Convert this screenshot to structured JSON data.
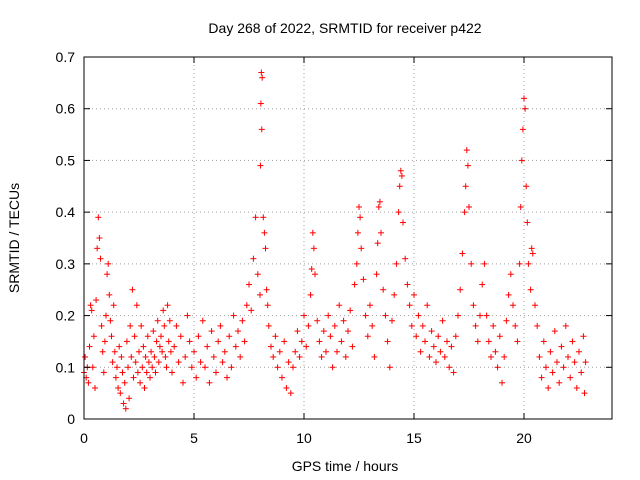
{
  "chart_data": {
    "type": "scatter",
    "title": "Day 268 of 2022, SRMTID for receiver p422",
    "xlabel": "GPS time / hours",
    "ylabel": "SRMTID / TECUs",
    "xlim": [
      0,
      24
    ],
    "ylim": [
      0,
      0.7
    ],
    "x_ticks": [
      "0",
      "5",
      "10",
      "15",
      "20"
    ],
    "y_ticks": [
      "0",
      "0.1",
      "0.2",
      "0.3",
      "0.4",
      "0.5",
      "0.6",
      "0.7"
    ],
    "grid": true,
    "marker": "plus",
    "color": "#ff0000",
    "series": [
      {
        "name": "SRMTID",
        "points": [
          [
            0.0,
            0.09
          ],
          [
            0.05,
            0.12
          ],
          [
            0.1,
            0.08
          ],
          [
            0.15,
            0.1
          ],
          [
            0.2,
            0.07
          ],
          [
            0.25,
            0.14
          ],
          [
            0.3,
            0.22
          ],
          [
            0.35,
            0.21
          ],
          [
            0.4,
            0.1
          ],
          [
            0.45,
            0.16
          ],
          [
            0.5,
            0.06
          ],
          [
            0.55,
            0.23
          ],
          [
            0.6,
            0.33
          ],
          [
            0.65,
            0.39
          ],
          [
            0.7,
            0.35
          ],
          [
            0.75,
            0.31
          ],
          [
            0.8,
            0.18
          ],
          [
            0.85,
            0.13
          ],
          [
            0.9,
            0.09
          ],
          [
            0.95,
            0.15
          ],
          [
            1.0,
            0.2
          ],
          [
            1.05,
            0.28
          ],
          [
            1.1,
            0.3
          ],
          [
            1.15,
            0.24
          ],
          [
            1.2,
            0.19
          ],
          [
            1.25,
            0.16
          ],
          [
            1.3,
            0.11
          ],
          [
            1.35,
            0.22
          ],
          [
            1.4,
            0.13
          ],
          [
            1.45,
            0.08
          ],
          [
            1.5,
            0.1
          ],
          [
            1.55,
            0.06
          ],
          [
            1.6,
            0.14
          ],
          [
            1.65,
            0.05
          ],
          [
            1.7,
            0.12
          ],
          [
            1.75,
            0.09
          ],
          [
            1.8,
            0.03
          ],
          [
            1.85,
            0.07
          ],
          [
            1.9,
            0.02
          ],
          [
            1.95,
            0.15
          ],
          [
            2.0,
            0.1
          ],
          [
            2.05,
            0.04
          ],
          [
            2.1,
            0.18
          ],
          [
            2.15,
            0.12
          ],
          [
            2.2,
            0.25
          ],
          [
            2.25,
            0.08
          ],
          [
            2.3,
            0.16
          ],
          [
            2.35,
            0.11
          ],
          [
            2.4,
            0.22
          ],
          [
            2.45,
            0.09
          ],
          [
            2.5,
            0.13
          ],
          [
            2.55,
            0.07
          ],
          [
            2.6,
            0.18
          ],
          [
            2.65,
            0.1
          ],
          [
            2.7,
            0.14
          ],
          [
            2.75,
            0.06
          ],
          [
            2.8,
            0.12
          ],
          [
            2.85,
            0.09
          ],
          [
            2.9,
            0.16
          ],
          [
            2.95,
            0.11
          ],
          [
            3.0,
            0.08
          ],
          [
            3.05,
            0.13
          ],
          [
            3.1,
            0.1
          ],
          [
            3.15,
            0.17
          ],
          [
            3.2,
            0.12
          ],
          [
            3.25,
            0.09
          ],
          [
            3.3,
            0.15
          ],
          [
            3.35,
            0.19
          ],
          [
            3.4,
            0.11
          ],
          [
            3.45,
            0.14
          ],
          [
            3.5,
            0.16
          ],
          [
            3.55,
            0.13
          ],
          [
            3.6,
            0.21
          ],
          [
            3.65,
            0.18
          ],
          [
            3.7,
            0.12
          ],
          [
            3.75,
            0.1
          ],
          [
            3.8,
            0.22
          ],
          [
            3.85,
            0.15
          ],
          [
            3.9,
            0.19
          ],
          [
            3.95,
            0.13
          ],
          [
            4.0,
            0.09
          ],
          [
            4.1,
            0.14
          ],
          [
            4.2,
            0.18
          ],
          [
            4.3,
            0.11
          ],
          [
            4.4,
            0.16
          ],
          [
            4.5,
            0.07
          ],
          [
            4.6,
            0.12
          ],
          [
            4.7,
            0.2
          ],
          [
            4.8,
            0.15
          ],
          [
            4.9,
            0.1
          ],
          [
            5.0,
            0.13
          ],
          [
            5.1,
            0.08
          ],
          [
            5.2,
            0.16
          ],
          [
            5.3,
            0.11
          ],
          [
            5.4,
            0.19
          ],
          [
            5.5,
            0.1
          ],
          [
            5.6,
            0.14
          ],
          [
            5.7,
            0.07
          ],
          [
            5.8,
            0.17
          ],
          [
            5.9,
            0.12
          ],
          [
            6.0,
            0.09
          ],
          [
            6.1,
            0.15
          ],
          [
            6.2,
            0.18
          ],
          [
            6.3,
            0.11
          ],
          [
            6.4,
            0.13
          ],
          [
            6.5,
            0.08
          ],
          [
            6.6,
            0.16
          ],
          [
            6.7,
            0.1
          ],
          [
            6.8,
            0.2
          ],
          [
            6.9,
            0.14
          ],
          [
            7.0,
            0.17
          ],
          [
            7.1,
            0.12
          ],
          [
            7.2,
            0.19
          ],
          [
            7.3,
            0.15
          ],
          [
            7.4,
            0.22
          ],
          [
            7.5,
            0.26
          ],
          [
            7.6,
            0.21
          ],
          [
            7.7,
            0.31
          ],
          [
            7.8,
            0.39
          ],
          [
            7.9,
            0.28
          ],
          [
            8.0,
            0.24
          ],
          [
            8.02,
            0.49
          ],
          [
            8.04,
            0.61
          ],
          [
            8.06,
            0.67
          ],
          [
            8.08,
            0.56
          ],
          [
            8.1,
            0.66
          ],
          [
            8.15,
            0.39
          ],
          [
            8.2,
            0.36
          ],
          [
            8.25,
            0.33
          ],
          [
            8.3,
            0.25
          ],
          [
            8.35,
            0.22
          ],
          [
            8.4,
            0.18
          ],
          [
            8.5,
            0.14
          ],
          [
            8.6,
            0.12
          ],
          [
            8.7,
            0.16
          ],
          [
            8.8,
            0.1
          ],
          [
            8.9,
            0.13
          ],
          [
            9.0,
            0.08
          ],
          [
            9.1,
            0.15
          ],
          [
            9.2,
            0.06
          ],
          [
            9.3,
            0.11
          ],
          [
            9.4,
            0.05
          ],
          [
            9.5,
            0.1
          ],
          [
            9.6,
            0.13
          ],
          [
            9.7,
            0.17
          ],
          [
            9.8,
            0.12
          ],
          [
            9.9,
            0.15
          ],
          [
            10.0,
            0.2
          ],
          [
            10.1,
            0.14
          ],
          [
            10.2,
            0.18
          ],
          [
            10.3,
            0.24
          ],
          [
            10.35,
            0.29
          ],
          [
            10.4,
            0.36
          ],
          [
            10.45,
            0.33
          ],
          [
            10.5,
            0.28
          ],
          [
            10.6,
            0.19
          ],
          [
            10.7,
            0.15
          ],
          [
            10.8,
            0.12
          ],
          [
            10.9,
            0.17
          ],
          [
            11.0,
            0.13
          ],
          [
            11.1,
            0.2
          ],
          [
            11.2,
            0.16
          ],
          [
            11.3,
            0.1
          ],
          [
            11.4,
            0.18
          ],
          [
            11.5,
            0.13
          ],
          [
            11.6,
            0.22
          ],
          [
            11.7,
            0.15
          ],
          [
            11.8,
            0.19
          ],
          [
            11.9,
            0.12
          ],
          [
            12.0,
            0.17
          ],
          [
            12.1,
            0.21
          ],
          [
            12.2,
            0.14
          ],
          [
            12.3,
            0.26
          ],
          [
            12.4,
            0.3
          ],
          [
            12.45,
            0.36
          ],
          [
            12.5,
            0.41
          ],
          [
            12.55,
            0.39
          ],
          [
            12.6,
            0.33
          ],
          [
            12.7,
            0.27
          ],
          [
            12.8,
            0.2
          ],
          [
            12.9,
            0.16
          ],
          [
            13.0,
            0.22
          ],
          [
            13.1,
            0.18
          ],
          [
            13.2,
            0.12
          ],
          [
            13.3,
            0.28
          ],
          [
            13.35,
            0.34
          ],
          [
            13.4,
            0.41
          ],
          [
            13.45,
            0.42
          ],
          [
            13.5,
            0.36
          ],
          [
            13.6,
            0.25
          ],
          [
            13.7,
            0.2
          ],
          [
            13.8,
            0.15
          ],
          [
            13.9,
            0.1
          ],
          [
            14.0,
            0.19
          ],
          [
            14.1,
            0.24
          ],
          [
            14.2,
            0.3
          ],
          [
            14.3,
            0.4
          ],
          [
            14.35,
            0.45
          ],
          [
            14.4,
            0.48
          ],
          [
            14.45,
            0.47
          ],
          [
            14.5,
            0.38
          ],
          [
            14.6,
            0.31
          ],
          [
            14.7,
            0.26
          ],
          [
            14.8,
            0.22
          ],
          [
            14.9,
            0.18
          ],
          [
            15.0,
            0.24
          ],
          [
            15.1,
            0.16
          ],
          [
            15.2,
            0.2
          ],
          [
            15.3,
            0.13
          ],
          [
            15.4,
            0.18
          ],
          [
            15.5,
            0.15
          ],
          [
            15.6,
            0.22
          ],
          [
            15.7,
            0.12
          ],
          [
            15.8,
            0.17
          ],
          [
            15.9,
            0.14
          ],
          [
            16.0,
            0.11
          ],
          [
            16.1,
            0.16
          ],
          [
            16.2,
            0.13
          ],
          [
            16.3,
            0.19
          ],
          [
            16.4,
            0.12
          ],
          [
            16.5,
            0.15
          ],
          [
            16.6,
            0.1
          ],
          [
            16.7,
            0.14
          ],
          [
            16.8,
            0.09
          ],
          [
            16.9,
            0.16
          ],
          [
            17.0,
            0.2
          ],
          [
            17.1,
            0.25
          ],
          [
            17.2,
            0.32
          ],
          [
            17.3,
            0.4
          ],
          [
            17.35,
            0.45
          ],
          [
            17.4,
            0.52
          ],
          [
            17.45,
            0.49
          ],
          [
            17.5,
            0.41
          ],
          [
            17.6,
            0.3
          ],
          [
            17.7,
            0.22
          ],
          [
            17.8,
            0.18
          ],
          [
            17.9,
            0.15
          ],
          [
            18.0,
            0.2
          ],
          [
            18.1,
            0.26
          ],
          [
            18.2,
            0.3
          ],
          [
            18.3,
            0.2
          ],
          [
            18.4,
            0.15
          ],
          [
            18.5,
            0.12
          ],
          [
            18.6,
            0.18
          ],
          [
            18.7,
            0.13
          ],
          [
            18.8,
            0.1
          ],
          [
            18.9,
            0.16
          ],
          [
            19.0,
            0.07
          ],
          [
            19.1,
            0.12
          ],
          [
            19.2,
            0.19
          ],
          [
            19.3,
            0.24
          ],
          [
            19.4,
            0.28
          ],
          [
            19.5,
            0.22
          ],
          [
            19.6,
            0.18
          ],
          [
            19.7,
            0.15
          ],
          [
            19.8,
            0.3
          ],
          [
            19.85,
            0.41
          ],
          [
            19.9,
            0.5
          ],
          [
            19.95,
            0.56
          ],
          [
            20.0,
            0.62
          ],
          [
            20.05,
            0.6
          ],
          [
            20.1,
            0.45
          ],
          [
            20.15,
            0.38
          ],
          [
            20.2,
            0.3
          ],
          [
            20.3,
            0.25
          ],
          [
            20.35,
            0.33
          ],
          [
            20.4,
            0.32
          ],
          [
            20.5,
            0.22
          ],
          [
            20.6,
            0.18
          ],
          [
            20.7,
            0.12
          ],
          [
            20.8,
            0.08
          ],
          [
            20.9,
            0.15
          ],
          [
            21.0,
            0.1
          ],
          [
            21.1,
            0.06
          ],
          [
            21.2,
            0.13
          ],
          [
            21.3,
            0.09
          ],
          [
            21.4,
            0.17
          ],
          [
            21.5,
            0.11
          ],
          [
            21.6,
            0.07
          ],
          [
            21.7,
            0.14
          ],
          [
            21.8,
            0.1
          ],
          [
            21.9,
            0.18
          ],
          [
            22.0,
            0.12
          ],
          [
            22.1,
            0.08
          ],
          [
            22.2,
            0.15
          ],
          [
            22.3,
            0.11
          ],
          [
            22.4,
            0.06
          ],
          [
            22.5,
            0.13
          ],
          [
            22.6,
            0.09
          ],
          [
            22.7,
            0.16
          ],
          [
            22.75,
            0.05
          ],
          [
            22.8,
            0.11
          ]
        ]
      }
    ]
  }
}
